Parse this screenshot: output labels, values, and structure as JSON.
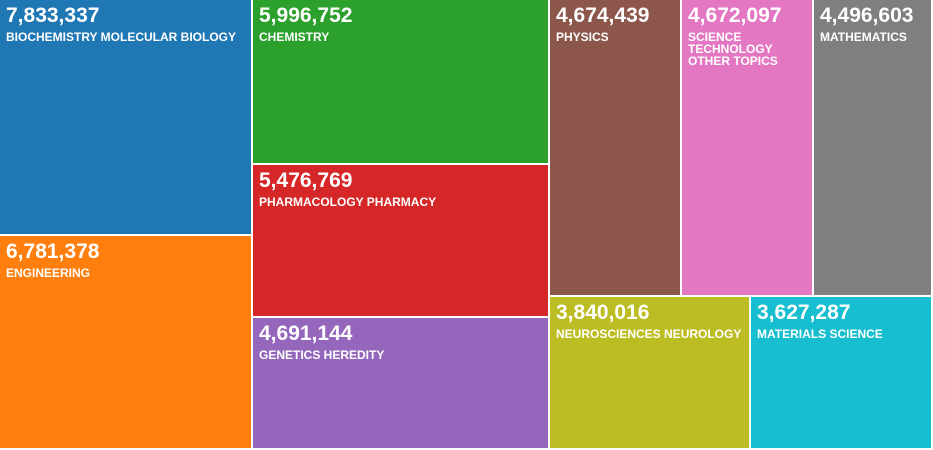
{
  "chart_data": {
    "type": "treemap",
    "items": [
      {
        "label": "BIOCHEMISTRY MOLECULAR BIOLOGY",
        "value_label": "7,833,337",
        "value": 7833337,
        "color": "#1f77b4"
      },
      {
        "label": "ENGINEERING",
        "value_label": "6,781,378",
        "value": 6781378,
        "color": "#ff7f0e"
      },
      {
        "label": "CHEMISTRY",
        "value_label": "5,996,752",
        "value": 5996752,
        "color": "#2ca02c"
      },
      {
        "label": "PHARMACOLOGY PHARMACY",
        "value_label": "5,476,769",
        "value": 5476769,
        "color": "#d62728"
      },
      {
        "label": "GENETICS HEREDITY",
        "value_label": "4,691,144",
        "value": 4691144,
        "color": "#9467bd"
      },
      {
        "label": "PHYSICS",
        "value_label": "4,674,439",
        "value": 4674439,
        "color": "#8c564b"
      },
      {
        "label": "SCIENCE TECHNOLOGY OTHER TOPICS",
        "value_label": "4,672,097",
        "value": 4672097,
        "color": "#e377c2"
      },
      {
        "label": "MATHEMATICS",
        "value_label": "4,496,603",
        "value": 4496603,
        "color": "#7f7f7f"
      },
      {
        "label": "NEUROSCIENCES NEUROLOGY",
        "value_label": "3,840,016",
        "value": 3840016,
        "color": "#bcbd22"
      },
      {
        "label": "MATERIALS SCIENCE",
        "value_label": "3,627,287",
        "value": 3627287,
        "color": "#17becf"
      }
    ]
  }
}
